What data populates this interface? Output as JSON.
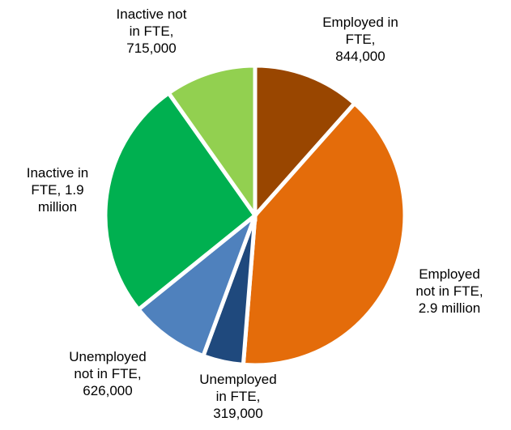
{
  "chart_data": {
    "type": "pie",
    "title": "",
    "slices": [
      {
        "label": "Employed in FTE, 844,000",
        "label_lines": [
          "Employed in",
          "FTE,",
          "844,000"
        ],
        "value": 844000,
        "color": "#994600"
      },
      {
        "label": "Employed not in FTE, 2.9 million",
        "label_lines": [
          "Employed",
          "not in FTE,",
          "2.9 million"
        ],
        "value": 2900000,
        "color": "#E46C0A"
      },
      {
        "label": "Unemployed in FTE, 319,000",
        "label_lines": [
          "Unemployed",
          "in FTE,",
          "319,000"
        ],
        "value": 319000,
        "color": "#1F497D"
      },
      {
        "label": "Unemployed not in FTE, 626,000",
        "label_lines": [
          "Unemployed",
          "not in FTE,",
          "626,000"
        ],
        "value": 626000,
        "color": "#4F81BD"
      },
      {
        "label": "Inactive in FTE, 1.9 million",
        "label_lines": [
          "Inactive in",
          "FTE, 1.9",
          "million"
        ],
        "value": 1900000,
        "color": "#00B050"
      },
      {
        "label": "Inactive not in FTE, 715,000",
        "label_lines": [
          "Inactive not",
          "in FTE,",
          "715,000"
        ],
        "value": 715000,
        "color": "#92D050"
      }
    ],
    "start_angle_deg": 0,
    "direction": "clockwise",
    "legend": "none",
    "data_labels": "outside"
  }
}
